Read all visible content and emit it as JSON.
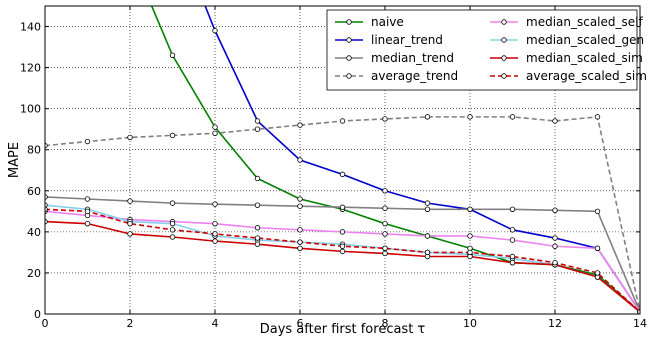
{
  "chart_data": {
    "type": "line",
    "xlabel": "Days after first forecast τ",
    "ylabel": "MAPE",
    "xlim": [
      0,
      14
    ],
    "ylim": [
      0,
      150
    ],
    "xticks": [
      0,
      2,
      4,
      6,
      8,
      10,
      12,
      14
    ],
    "yticks": [
      0,
      20,
      40,
      60,
      80,
      100,
      120,
      140
    ],
    "grid": true,
    "legend_position": "top-right",
    "x": [
      0,
      1,
      2,
      3,
      4,
      5,
      6,
      7,
      8,
      9,
      10,
      11,
      12,
      13,
      14
    ],
    "series": [
      {
        "name": "naive",
        "color": "#008000",
        "dashed": false,
        "values": [
          null,
          null,
          175,
          126,
          91,
          66,
          56,
          51,
          44,
          38,
          32,
          25,
          24,
          19,
          1
        ]
      },
      {
        "name": "linear_trend",
        "color": "#0000cc",
        "dashed": false,
        "values": [
          null,
          null,
          null,
          190,
          138,
          94,
          75,
          68,
          60,
          54,
          51,
          41,
          37,
          32,
          1
        ]
      },
      {
        "name": "median_trend",
        "color": "#808080",
        "dashed": false,
        "values": [
          57,
          56,
          55,
          54,
          53.5,
          53,
          52.5,
          52,
          51.5,
          51,
          51,
          51,
          50.5,
          50,
          1
        ]
      },
      {
        "name": "average_trend",
        "color": "#808080",
        "dashed": true,
        "values": [
          82,
          84,
          86,
          87,
          88,
          90,
          92,
          94,
          95,
          96,
          96,
          96,
          94,
          96,
          1
        ]
      },
      {
        "name": "median_scaled_self",
        "color": "#ee82ee",
        "dashed": false,
        "values": [
          50,
          48,
          46,
          45,
          44,
          42,
          41,
          40,
          39,
          38,
          38,
          36,
          33,
          32,
          1
        ]
      },
      {
        "name": "median_scaled_gen",
        "color": "#87ceeb",
        "dashed": false,
        "values": [
          53,
          51,
          45,
          44,
          38,
          36,
          35,
          34,
          32,
          30,
          29,
          27,
          24,
          18,
          1
        ]
      },
      {
        "name": "median_scaled_sim",
        "color": "#cc0000",
        "dashed": false,
        "values": [
          45,
          44,
          39,
          37.5,
          35.5,
          34,
          32,
          30.5,
          29.5,
          28,
          28,
          25,
          24,
          18,
          1
        ]
      },
      {
        "name": "average_scaled_sim",
        "color": "#cc0000",
        "dashed": true,
        "values": [
          51,
          50,
          44,
          41,
          39,
          37,
          35,
          33,
          32,
          30,
          30,
          28,
          25,
          20,
          1
        ]
      }
    ]
  }
}
